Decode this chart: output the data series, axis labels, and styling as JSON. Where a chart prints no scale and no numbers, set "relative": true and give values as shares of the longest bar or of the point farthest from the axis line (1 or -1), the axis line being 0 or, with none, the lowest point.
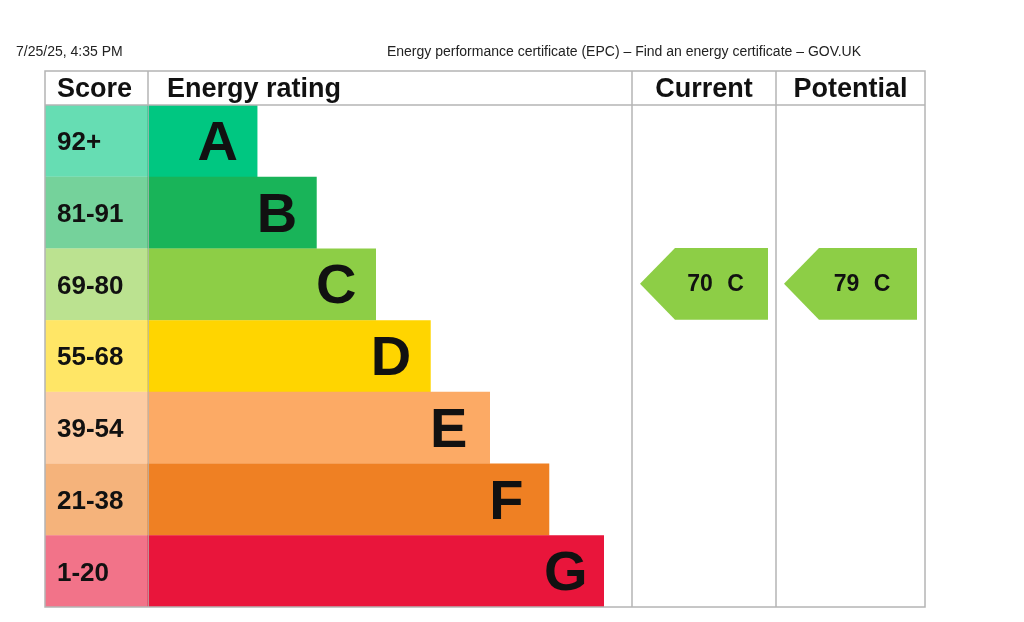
{
  "chart_data": {
    "type": "bar",
    "orientation": "horizontal",
    "relative": true,
    "categories": [
      "92+",
      "81-91",
      "69-80",
      "55-68",
      "39-54",
      "21-38",
      "1-20"
    ],
    "values": [
      0.24,
      0.37,
      0.5,
      0.62,
      0.75,
      0.88,
      1
    ],
    "colors": [
      "#00c781",
      "#19b459",
      "#8dce46",
      "#ffd500",
      "#fcaa65",
      "#ef8023",
      "#e9153b"
    ],
    "xlabel": "Energy rating",
    "ylabel": "Score",
    "annotations": [
      "7/25/25, 4:35 PM",
      "Energy performance certificate (EPC) – Find an energy certificate – GOV.UK",
      "Current",
      "Potential",
      "70 C",
      "79 C",
      {
        "text": "A",
        "x": 0.24,
        "y": "92+"
      },
      {
        "text": "B",
        "x": 0.37,
        "y": "81-91"
      },
      {
        "text": "C",
        "x": 0.5,
        "y": "69-80"
      },
      {
        "text": "D",
        "x": 0.62,
        "y": "55-68"
      },
      {
        "text": "E",
        "x": 0.75,
        "y": "39-54"
      },
      {
        "text": "F",
        "x": 0.88,
        "y": "21-38"
      },
      {
        "text": "G",
        "x": 1,
        "y": "1-20"
      }
    ]
  }
}
